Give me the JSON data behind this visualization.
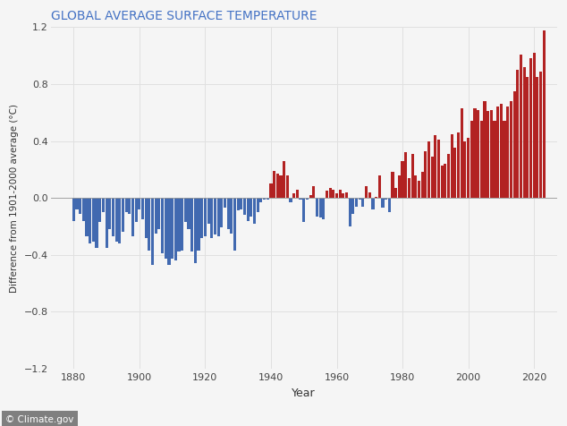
{
  "title": "GLOBAL AVERAGE SURFACE TEMPERATURE",
  "ylabel": "Difference from 1901-2000 average (°C)",
  "xlabel": "Year",
  "watermark": "© Climate.gov",
  "title_color": "#4472C4",
  "watermark_bg": "#7f7f7f",
  "watermark_color": "white",
  "background_color": "#f5f5f5",
  "plot_bg": "#f5f5f5",
  "grid_color": "#e0e0e0",
  "ylim": [
    -1.2,
    1.2
  ],
  "yticks": [
    -1.2,
    -0.8,
    -0.4,
    0,
    0.4,
    0.8,
    1.2
  ],
  "xticks": [
    1880,
    1900,
    1920,
    1940,
    1960,
    1980,
    2000,
    2020
  ],
  "blue_color": "#4169B0",
  "red_color": "#B22222",
  "years": [
    1880,
    1881,
    1882,
    1883,
    1884,
    1885,
    1886,
    1887,
    1888,
    1889,
    1890,
    1891,
    1892,
    1893,
    1894,
    1895,
    1896,
    1897,
    1898,
    1899,
    1900,
    1901,
    1902,
    1903,
    1904,
    1905,
    1906,
    1907,
    1908,
    1909,
    1910,
    1911,
    1912,
    1913,
    1914,
    1915,
    1916,
    1917,
    1918,
    1919,
    1920,
    1921,
    1922,
    1923,
    1924,
    1925,
    1926,
    1927,
    1928,
    1929,
    1930,
    1931,
    1932,
    1933,
    1934,
    1935,
    1936,
    1937,
    1938,
    1939,
    1940,
    1941,
    1942,
    1943,
    1944,
    1945,
    1946,
    1947,
    1948,
    1949,
    1950,
    1951,
    1952,
    1953,
    1954,
    1955,
    1956,
    1957,
    1958,
    1959,
    1960,
    1961,
    1962,
    1963,
    1964,
    1965,
    1966,
    1967,
    1968,
    1969,
    1970,
    1971,
    1972,
    1973,
    1974,
    1975,
    1976,
    1977,
    1978,
    1979,
    1980,
    1981,
    1982,
    1983,
    1984,
    1985,
    1986,
    1987,
    1988,
    1989,
    1990,
    1991,
    1992,
    1993,
    1994,
    1995,
    1996,
    1997,
    1998,
    1999,
    2000,
    2001,
    2002,
    2003,
    2004,
    2005,
    2006,
    2007,
    2008,
    2009,
    2010,
    2011,
    2012,
    2013,
    2014,
    2015,
    2016,
    2017,
    2018,
    2019,
    2020,
    2021,
    2022,
    2023
  ],
  "anomalies": [
    -0.16,
    -0.08,
    -0.11,
    -0.16,
    -0.27,
    -0.32,
    -0.31,
    -0.35,
    -0.17,
    -0.1,
    -0.35,
    -0.22,
    -0.27,
    -0.31,
    -0.32,
    -0.24,
    -0.1,
    -0.11,
    -0.27,
    -0.17,
    -0.08,
    -0.15,
    -0.28,
    -0.37,
    -0.47,
    -0.25,
    -0.22,
    -0.39,
    -0.43,
    -0.47,
    -0.43,
    -0.44,
    -0.38,
    -0.37,
    -0.17,
    -0.22,
    -0.38,
    -0.46,
    -0.37,
    -0.28,
    -0.27,
    -0.18,
    -0.28,
    -0.26,
    -0.27,
    -0.21,
    -0.07,
    -0.22,
    -0.25,
    -0.37,
    -0.09,
    -0.08,
    -0.12,
    -0.16,
    -0.13,
    -0.18,
    -0.1,
    -0.03,
    -0.01,
    -0.01,
    0.1,
    0.19,
    0.17,
    0.16,
    0.26,
    0.16,
    -0.03,
    0.03,
    0.06,
    -0.01,
    -0.17,
    -0.01,
    0.02,
    0.08,
    -0.13,
    -0.14,
    -0.15,
    0.05,
    0.07,
    0.06,
    0.03,
    0.06,
    0.03,
    0.04,
    -0.2,
    -0.11,
    -0.06,
    -0.01,
    -0.06,
    0.08,
    0.04,
    -0.08,
    0.01,
    0.16,
    -0.07,
    -0.01,
    -0.1,
    0.18,
    0.07,
    0.16,
    0.26,
    0.32,
    0.14,
    0.31,
    0.16,
    0.12,
    0.18,
    0.33,
    0.4,
    0.29,
    0.44,
    0.41,
    0.23,
    0.24,
    0.31,
    0.45,
    0.35,
    0.46,
    0.63,
    0.4,
    0.42,
    0.54,
    0.63,
    0.62,
    0.54,
    0.68,
    0.61,
    0.62,
    0.54,
    0.64,
    0.66,
    0.54,
    0.64,
    0.68,
    0.75,
    0.9,
    1.01,
    0.92,
    0.85,
    0.98,
    1.02,
    0.85,
    0.89,
    1.18
  ]
}
